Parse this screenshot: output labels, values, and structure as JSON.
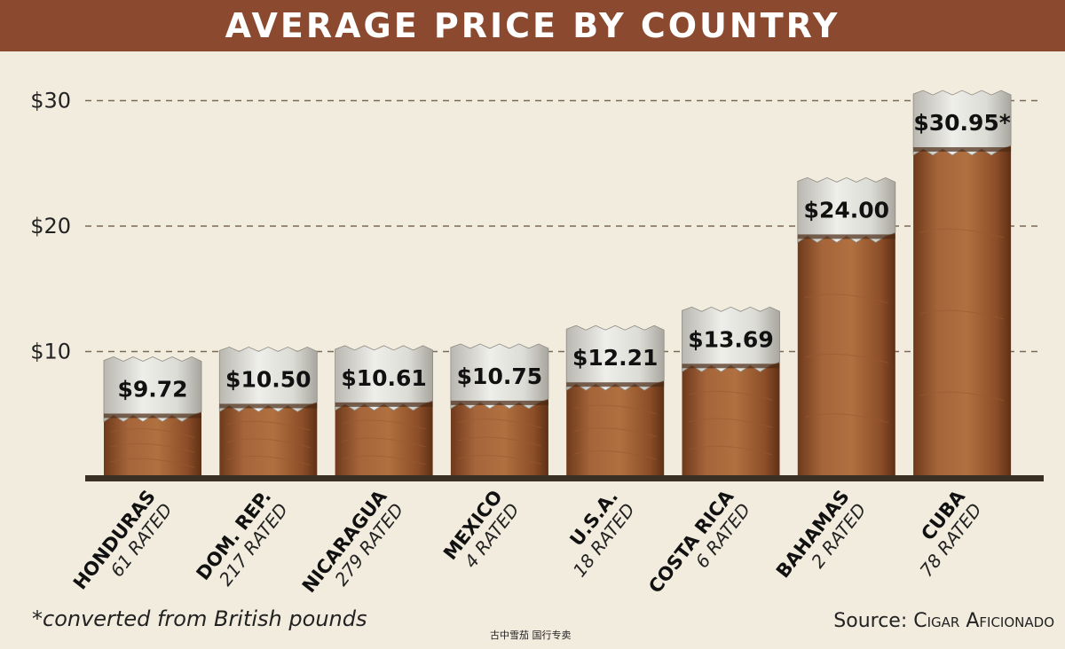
{
  "chart_data": {
    "type": "bar",
    "title": "AVERAGE PRICE BY COUNTRY",
    "categories": [
      "HONDURAS",
      "DOM. REP.",
      "NICARAGUA",
      "MEXICO",
      "U.S.A.",
      "COSTA RICA",
      "BAHAMAS",
      "CUBA"
    ],
    "rated": [
      "61 RATED",
      "217 RATED",
      "279 RATED",
      "4 RATED",
      "18 RATED",
      "6 RATED",
      "2 RATED",
      "78 RATED"
    ],
    "values": [
      9.72,
      10.5,
      10.61,
      10.75,
      12.21,
      13.69,
      24.0,
      30.95
    ],
    "value_labels": [
      "$9.72",
      "$10.50",
      "$10.61",
      "$10.75",
      "$12.21",
      "$13.69",
      "$24.00",
      "$30.95*"
    ],
    "yticks": [
      10,
      20,
      30
    ],
    "ytick_labels": [
      "$10",
      "$20",
      "$30"
    ],
    "ylim": [
      0,
      30.95
    ],
    "grid": true,
    "legend": "none"
  },
  "footnote": "*converted from British pounds",
  "source_label": "Source:",
  "source_name": "Cigar Aficionado",
  "watermark": "古中雪茄 国行专卖",
  "colors": {
    "title_bar": "#8b4a2f",
    "background": "#f2ecde",
    "cigar_wrapper": "#9a5a32",
    "ash": "#d8d8d2",
    "baseline": "#3b3024"
  }
}
